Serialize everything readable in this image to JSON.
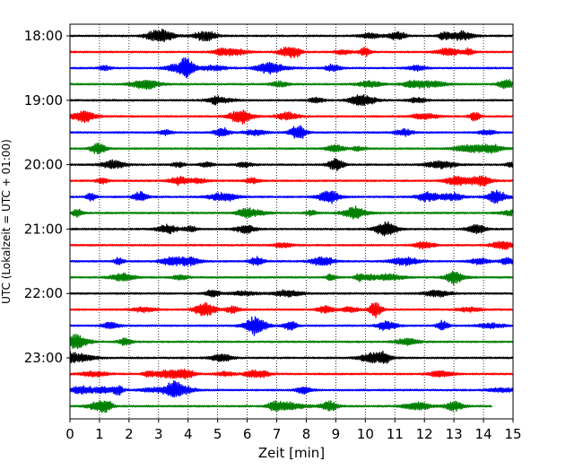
{
  "chart_data": {
    "type": "line",
    "title": "",
    "xlabel": "Zeit  [min]",
    "ylabel": "UTC (Lokalzeit = UTC + 01:00)",
    "xlim": [
      0,
      15
    ],
    "x_ticks": [
      0,
      1,
      2,
      3,
      4,
      5,
      6,
      7,
      8,
      9,
      10,
      11,
      12,
      13,
      14,
      15
    ],
    "x_tick_labels": [
      "0",
      "1",
      "2",
      "3",
      "4",
      "5",
      "6",
      "7",
      "8",
      "9",
      "10",
      "11",
      "12",
      "13",
      "14",
      "15"
    ],
    "y_axis": "time of day (UTC), 24 helicorder rows of 15 minutes each, top = 18:00",
    "y_ticks": [
      "18:00",
      "19:00",
      "20:00",
      "21:00",
      "22:00",
      "23:00"
    ],
    "row_start_times": [
      "18:00",
      "18:15",
      "18:30",
      "18:45",
      "19:00",
      "19:15",
      "19:30",
      "19:45",
      "20:00",
      "20:15",
      "20:30",
      "20:45",
      "21:00",
      "21:15",
      "21:30",
      "21:45",
      "22:00",
      "22:15",
      "22:30",
      "22:45",
      "23:00",
      "23:15",
      "23:30",
      "23:45"
    ],
    "row_colors": [
      "#000000",
      "#ff0000",
      "#0000ff",
      "#008000"
    ],
    "last_row_end_minute": 14.3,
    "notable_events": [
      {
        "row_start": "21:00",
        "minute": 10.7,
        "description": "largest amplitude burst"
      }
    ],
    "grid": {
      "vertical": true,
      "style": "dotted"
    },
    "legend": "none"
  }
}
